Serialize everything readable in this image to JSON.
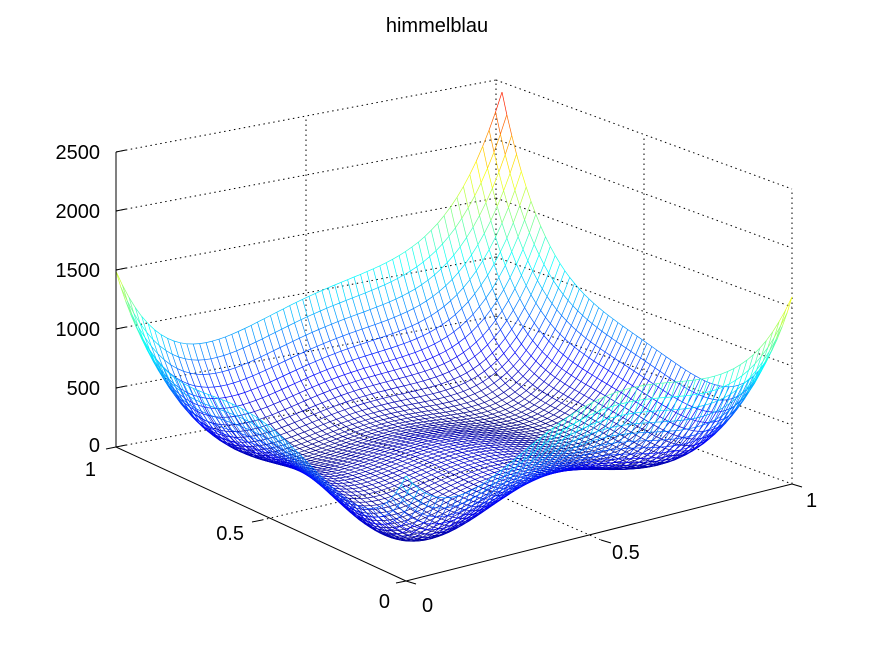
{
  "chart_data": {
    "type": "mesh3d",
    "title": "himmelblau",
    "function": "f(x,y) = (x^2 + y - 11)^2 + (x + y^2 - 7)^2 evaluated on a grid scaled to the unit square",
    "x_axis": {
      "range": [
        0,
        1
      ],
      "ticks": [
        0,
        0.5,
        1
      ],
      "tick_labels": [
        "0",
        "0.5",
        "1"
      ]
    },
    "y_axis": {
      "range": [
        0,
        1
      ],
      "ticks": [
        0,
        0.5,
        1
      ],
      "tick_labels": [
        "0",
        "0.5",
        "1"
      ]
    },
    "z_axis": {
      "range": [
        0,
        2500
      ],
      "ticks": [
        0,
        500,
        1000,
        1500,
        2000,
        2500
      ],
      "tick_labels": [
        "0",
        "500",
        "1000",
        "1500",
        "2000",
        "2500"
      ]
    },
    "colormap": "jet",
    "grid": true,
    "box": true
  }
}
